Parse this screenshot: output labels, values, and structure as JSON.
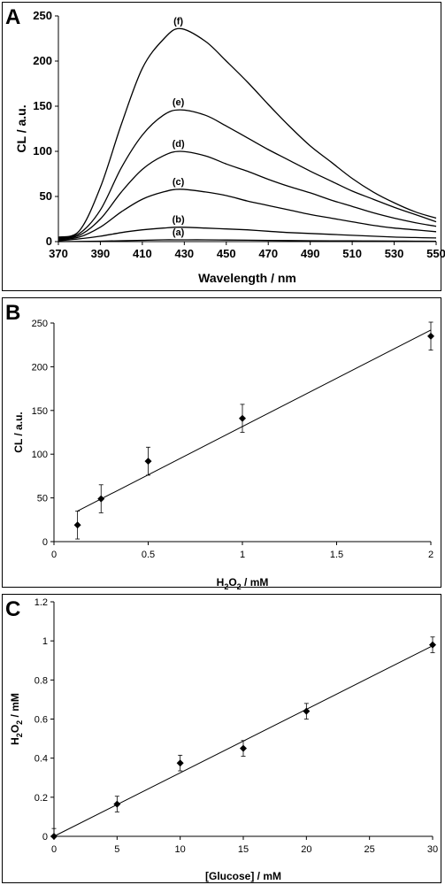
{
  "chart_data": [
    {
      "panel_label": "A",
      "type": "line",
      "xlabel": "Wavelength / nm",
      "ylabel": "CL / a.u.",
      "xlim": [
        370,
        550
      ],
      "ylim": [
        0,
        250
      ],
      "x_ticks": [
        370,
        390,
        410,
        430,
        450,
        470,
        490,
        510,
        530,
        550
      ],
      "y_ticks": [
        0,
        50,
        100,
        150,
        200,
        250
      ],
      "grid": false,
      "x": [
        370,
        380,
        390,
        400,
        410,
        420,
        428,
        440,
        450,
        460,
        470,
        480,
        490,
        500,
        510,
        520,
        530,
        540,
        550
      ],
      "series": [
        {
          "label": "(a)",
          "values": [
            0,
            0.2,
            0.5,
            1,
            1.5,
            2,
            2,
            2,
            1.8,
            1.6,
            1.4,
            1.2,
            1,
            0.9,
            0.8,
            0.7,
            0.6,
            0.5,
            0.4
          ]
        },
        {
          "label": "(b)",
          "values": [
            1,
            3,
            6,
            10,
            13,
            15,
            16,
            15,
            14,
            13,
            11.5,
            10,
            9,
            8,
            7,
            6,
            5,
            4.5,
            4
          ]
        },
        {
          "label": "(c)",
          "values": [
            2,
            5,
            16,
            33,
            47,
            55,
            58,
            55,
            51,
            45,
            40,
            35,
            30,
            26,
            22,
            18,
            15,
            13,
            11
          ]
        },
        {
          "label": "(d)",
          "values": [
            3,
            7,
            25,
            55,
            80,
            95,
            100,
            95,
            86,
            78,
            69,
            61,
            54,
            46,
            39,
            32,
            26,
            21,
            17
          ]
        },
        {
          "label": "(e)",
          "values": [
            4,
            9,
            35,
            82,
            118,
            140,
            146,
            140,
            128,
            115,
            102,
            90,
            78,
            67,
            56,
            47,
            38,
            30,
            22
          ]
        },
        {
          "label": "(f)",
          "values": [
            5,
            12,
            60,
            130,
            192,
            224,
            236,
            222,
            200,
            177,
            152,
            128,
            106,
            88,
            70,
            55,
            43,
            33,
            26
          ]
        }
      ]
    },
    {
      "panel_label": "B",
      "type": "scatter",
      "xlabel_main": "H",
      "xlabel_sub1": "2",
      "xlabel_mid": "O",
      "xlabel_sub2": "2",
      "xlabel_tail": " / mM",
      "ylabel": "CL / a.u.",
      "xlim": [
        0,
        2
      ],
      "ylim": [
        0,
        250
      ],
      "x_ticks": [
        0,
        0.5,
        1,
        1.5,
        2
      ],
      "y_ticks": [
        0,
        50,
        100,
        150,
        200,
        250
      ],
      "grid": false,
      "points": [
        {
          "x": 0.125,
          "y": 19,
          "err": 16
        },
        {
          "x": 0.25,
          "y": 49,
          "err": 16
        },
        {
          "x": 0.5,
          "y": 92,
          "err": 16
        },
        {
          "x": 1,
          "y": 141,
          "err": 16
        },
        {
          "x": 2,
          "y": 235,
          "err": 16
        }
      ],
      "trendline": [
        [
          0.125,
          35
        ],
        [
          2,
          242
        ]
      ]
    },
    {
      "panel_label": "C",
      "type": "scatter",
      "xlabel": "[Glucose] / mM",
      "ylabel_main": "H",
      "ylabel_sub1": "2",
      "ylabel_mid": "O",
      "ylabel_sub2": "2",
      "ylabel_tail": " / mM",
      "xlim": [
        0,
        30
      ],
      "ylim": [
        0,
        1.2
      ],
      "x_ticks": [
        0,
        5,
        10,
        15,
        20,
        25,
        30
      ],
      "y_ticks": [
        0,
        0.2,
        0.4,
        0.6,
        0.8,
        1,
        1.2
      ],
      "grid": false,
      "points": [
        {
          "x": 0,
          "y": 0,
          "err": 0.04
        },
        {
          "x": 5,
          "y": 0.165,
          "err": 0.04
        },
        {
          "x": 10,
          "y": 0.375,
          "err": 0.04
        },
        {
          "x": 15,
          "y": 0.45,
          "err": 0.04
        },
        {
          "x": 20,
          "y": 0.64,
          "err": 0.04
        },
        {
          "x": 30,
          "y": 0.98,
          "err": 0.04
        }
      ],
      "trendline": [
        [
          0,
          0
        ],
        [
          30,
          0.975
        ]
      ]
    }
  ]
}
